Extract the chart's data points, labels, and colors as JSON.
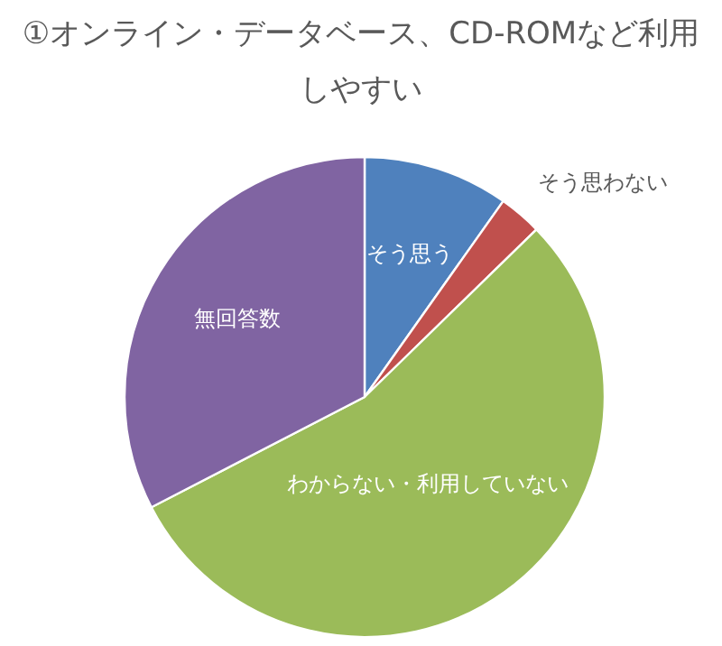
{
  "chart_data": {
    "type": "pie",
    "title": "①オンライン・データベース、CD-ROMなど利用しやすい",
    "categories": [
      "そう思う",
      "そう思わない",
      "わからない・利用していない",
      "無回答数"
    ],
    "values": [
      9.8,
      2.9,
      54.7,
      32.6
    ],
    "colors": [
      "#4f81bd",
      "#c0504d",
      "#9bbb59",
      "#8064a2"
    ]
  }
}
